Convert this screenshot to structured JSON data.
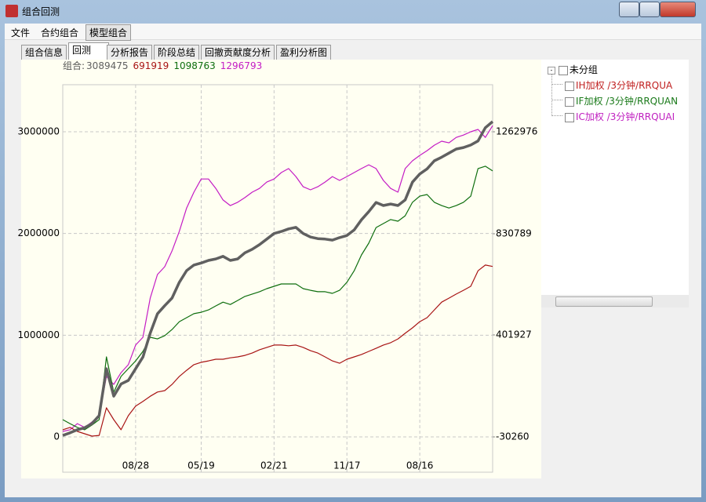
{
  "window": {
    "title": "组合回测"
  },
  "menu": [
    "文件",
    "合约组合",
    "模型组合"
  ],
  "tabs": [
    "组合信息",
    "回测",
    "分析报告",
    "阶段总结",
    "回撤贡献度分析",
    "盈利分析图"
  ],
  "tree": {
    "root": "未分组",
    "items": [
      {
        "text": "IH加权  /3分钟/RRQUA",
        "color": "#c02020"
      },
      {
        "text": "IF加权  /3分钟/RRQUAN",
        "color": "#1a7a1a"
      },
      {
        "text": "IC加权  /3分钟/RRQUAI",
        "color": "#c020c0"
      }
    ]
  },
  "chart_data": {
    "type": "line",
    "readout_label": "组合:",
    "categories": [
      null,
      null,
      null,
      null,
      null,
      null,
      null,
      null,
      null,
      null,
      "08/28",
      null,
      null,
      null,
      null,
      null,
      null,
      null,
      null,
      "05/19",
      null,
      null,
      null,
      null,
      null,
      null,
      null,
      null,
      null,
      "02/21",
      null,
      null,
      null,
      null,
      null,
      null,
      null,
      null,
      null,
      "11/17",
      null,
      null,
      null,
      null,
      null,
      null,
      null,
      null,
      null,
      "08/16",
      null,
      null,
      null,
      null,
      null,
      null,
      null,
      null,
      null,
      null
    ],
    "ylim": [
      -347000,
      3462700
    ],
    "yticks": [
      0,
      1000000,
      2000000,
      3000000
    ],
    "y2lim": [
      -179860,
      1462450
    ],
    "y2ticks": [
      -30260,
      401927,
      830789,
      1262976
    ],
    "grid": true,
    "series": [
      {
        "color": "#606060",
        "readout": 3089475,
        "values": [
          15000,
          40000,
          70000,
          90000,
          130000,
          210000,
          670000,
          400000,
          520000,
          555000,
          670000,
          785000,
          1020000,
          1210000,
          1290000,
          1365000,
          1520000,
          1635000,
          1690000,
          1710000,
          1735000,
          1750000,
          1775000,
          1735000,
          1750000,
          1810000,
          1845000,
          1890000,
          1945000,
          2000000,
          2020000,
          2045000,
          2060000,
          2000000,
          1965000,
          1950000,
          1945000,
          1935000,
          1960000,
          1980000,
          2035000,
          2135000,
          2215000,
          2305000,
          2275000,
          2290000,
          2275000,
          2330000,
          2505000,
          2585000,
          2635000,
          2715000,
          2750000,
          2790000,
          2830000,
          2845000,
          2870000,
          2910000,
          3040000,
          3100000
        ]
      },
      {
        "color": "#a81414",
        "axis": "y2",
        "readout": 691919,
        "values": [
          0,
          10000,
          -7000,
          -17000,
          -27000,
          -24000,
          93000,
          43000,
          0,
          60000,
          100000,
          120000,
          142000,
          160000,
          166000,
          192000,
          226000,
          252000,
          276000,
          286000,
          292000,
          299000,
          299000,
          305000,
          309000,
          315000,
          325000,
          339000,
          349000,
          359000,
          359000,
          356000,
          359000,
          349000,
          335000,
          325000,
          309000,
          292000,
          282000,
          299000,
          309000,
          319000,
          332000,
          345000,
          359000,
          369000,
          385000,
          409000,
          432000,
          458000,
          475000,
          508000,
          541000,
          558000,
          575000,
          591000,
          608000,
          674000,
          698000,
          692000
        ]
      },
      {
        "color": "#0e6e0e",
        "axis": "y2",
        "readout": 1098763,
        "values": [
          43000,
          26000,
          10000,
          0,
          20000,
          43000,
          309000,
          159000,
          226000,
          259000,
          292000,
          332000,
          392000,
          385000,
          399000,
          425000,
          458000,
          475000,
          492000,
          498000,
          508000,
          525000,
          541000,
          531000,
          548000,
          565000,
          575000,
          585000,
          598000,
          608000,
          618000,
          618000,
          618000,
          598000,
          591000,
          585000,
          585000,
          578000,
          591000,
          625000,
          674000,
          741000,
          791000,
          857000,
          874000,
          891000,
          884000,
          907000,
          964000,
          990000,
          997000,
          964000,
          950000,
          940000,
          950000,
          964000,
          990000,
          1107000,
          1117000,
          1097000
        ]
      },
      {
        "color": "#c41cc4",
        "axis": "y2",
        "readout": 1296793,
        "values": [
          -7000,
          0,
          26000,
          10000,
          33000,
          60000,
          226000,
          192000,
          242000,
          276000,
          359000,
          392000,
          558000,
          658000,
          691000,
          758000,
          841000,
          940000,
          1007000,
          1063000,
          1063000,
          1023000,
          974000,
          950000,
          964000,
          984000,
          1007000,
          1023000,
          1050000,
          1063000,
          1090000,
          1107000,
          1073000,
          1030000,
          1017000,
          1030000,
          1050000,
          1073000,
          1057000,
          1073000,
          1090000,
          1107000,
          1123000,
          1107000,
          1057000,
          1023000,
          1007000,
          1107000,
          1140000,
          1163000,
          1183000,
          1206000,
          1223000,
          1216000,
          1239000,
          1249000,
          1263000,
          1273000,
          1239000,
          1289000
        ]
      }
    ]
  }
}
